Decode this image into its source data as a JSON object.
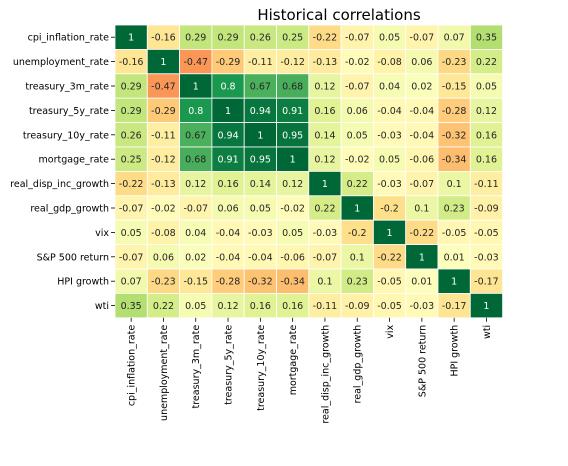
{
  "chart_data": {
    "type": "heatmap",
    "title": "Historical correlations",
    "row_labels": [
      "cpi_inflation_rate",
      "unemployment_rate",
      "treasury_3m_rate",
      "treasury_5y_rate",
      "treasury_10y_rate",
      "mortgage_rate",
      "real_disp_inc_growth",
      "real_gdp_growth",
      "vix",
      "S&P 500 return",
      "HPI growth",
      "wti"
    ],
    "col_labels": [
      "cpi_inflation_rate",
      "unemployment_rate",
      "treasury_3m_rate",
      "treasury_5y_rate",
      "treasury_10y_rate",
      "mortgage_rate",
      "real_disp_inc_growth",
      "real_gdp_growth",
      "vix",
      "S&P 500 return",
      "HPI growth",
      "wti"
    ],
    "values": [
      [
        1,
        -0.16,
        0.29,
        0.29,
        0.26,
        0.25,
        -0.22,
        -0.07,
        0.05,
        -0.07,
        0.07,
        0.35
      ],
      [
        -0.16,
        1,
        -0.47,
        -0.29,
        -0.11,
        -0.12,
        -0.13,
        -0.02,
        -0.08,
        0.06,
        -0.23,
        0.22
      ],
      [
        0.29,
        -0.47,
        1,
        0.8,
        0.67,
        0.68,
        0.12,
        -0.07,
        0.04,
        0.02,
        -0.15,
        0.05
      ],
      [
        0.29,
        -0.29,
        0.8,
        1,
        0.94,
        0.91,
        0.16,
        0.06,
        -0.04,
        -0.04,
        -0.28,
        0.12
      ],
      [
        0.26,
        -0.11,
        0.67,
        0.94,
        1,
        0.95,
        0.14,
        0.05,
        -0.03,
        -0.04,
        -0.32,
        0.16
      ],
      [
        0.25,
        -0.12,
        0.68,
        0.91,
        0.95,
        1,
        0.12,
        -0.02,
        0.05,
        -0.06,
        -0.34,
        0.16
      ],
      [
        -0.22,
        -0.13,
        0.12,
        0.16,
        0.14,
        0.12,
        1,
        0.22,
        -0.03,
        -0.07,
        0.1,
        -0.11
      ],
      [
        -0.07,
        -0.02,
        -0.07,
        0.06,
        0.05,
        -0.02,
        0.22,
        1,
        -0.2,
        0.1,
        0.23,
        -0.09
      ],
      [
        0.05,
        -0.08,
        0.04,
        -0.04,
        -0.03,
        0.05,
        -0.03,
        -0.2,
        1,
        -0.22,
        -0.05,
        -0.05
      ],
      [
        -0.07,
        0.06,
        0.02,
        -0.04,
        -0.04,
        -0.06,
        -0.07,
        0.1,
        -0.22,
        1,
        0.01,
        -0.03
      ],
      [
        0.07,
        -0.23,
        -0.15,
        -0.28,
        -0.32,
        -0.34,
        0.1,
        0.23,
        -0.05,
        0.01,
        1,
        -0.17
      ],
      [
        0.35,
        0.22,
        0.05,
        0.12,
        0.16,
        0.16,
        -0.11,
        -0.09,
        -0.05,
        -0.03,
        -0.17,
        1
      ]
    ],
    "value_range": [
      -1,
      1
    ],
    "colormap": "RdYlGn",
    "annotated": true,
    "colorbar": false
  }
}
